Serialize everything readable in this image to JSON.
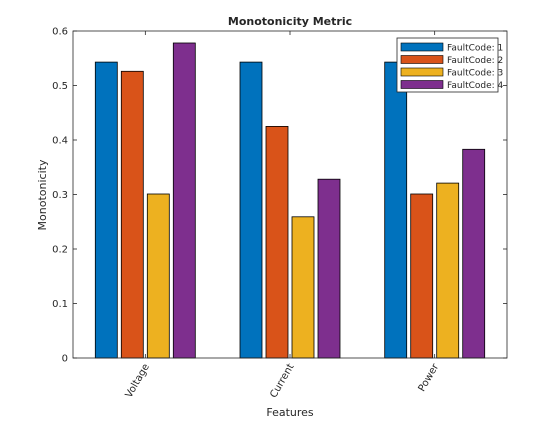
{
  "chart_data": {
    "type": "bar",
    "title": "Monotonicity Metric",
    "xlabel": "Features",
    "ylabel": "Monotonicity",
    "categories": [
      "Voltage",
      "Current",
      "Power"
    ],
    "series": [
      {
        "name": "FaultCode: 1",
        "color": "#0072bd",
        "values": [
          0.543,
          0.543,
          0.543
        ]
      },
      {
        "name": "FaultCode: 2",
        "color": "#d95319",
        "values": [
          0.526,
          0.425,
          0.301
        ]
      },
      {
        "name": "FaultCode: 3",
        "color": "#edb120",
        "values": [
          0.301,
          0.259,
          0.321
        ]
      },
      {
        "name": "FaultCode: 4",
        "color": "#7e2f8e",
        "values": [
          0.578,
          0.328,
          0.383
        ]
      }
    ],
    "ylim": [
      0,
      0.6
    ],
    "yticks": [
      "0",
      "0.1",
      "0.2",
      "0.3",
      "0.4",
      "0.5",
      "0.6"
    ],
    "grid": false,
    "legend_position": "top-right"
  }
}
